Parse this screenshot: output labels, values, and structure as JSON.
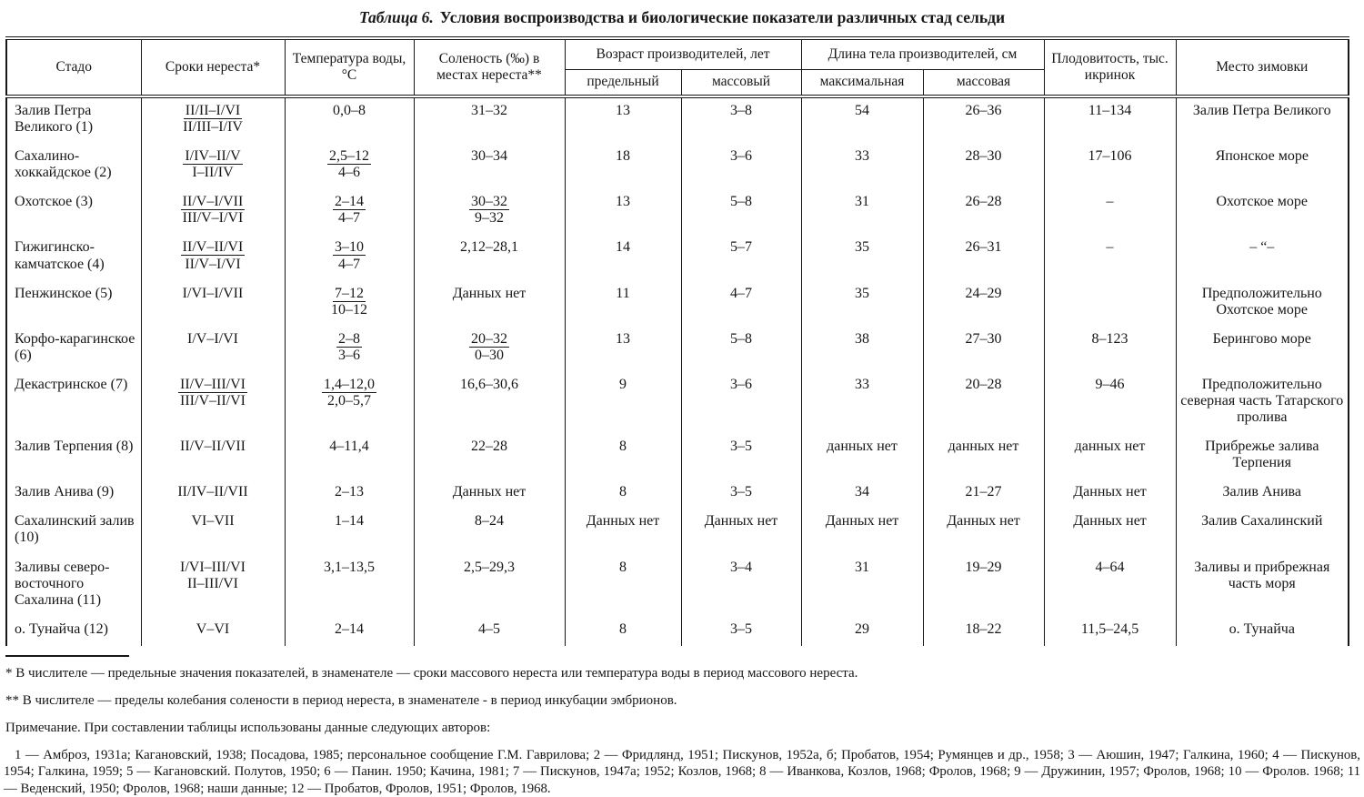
{
  "colors": {
    "ink": "#161616",
    "paper": "#ffffff"
  },
  "title": {
    "label": "Таблица 6.",
    "text": "Условия воспроизводства и биологические показатели различных стад сельди"
  },
  "table": {
    "header": {
      "groups": [
        {
          "label": "Стадо",
          "span": 1
        },
        {
          "label": "Сроки нереста*",
          "span": 1
        },
        {
          "label": "Температура воды, °С",
          "span": 1
        },
        {
          "label": "Соленость (‰) в местах нереста**",
          "span": 1
        },
        {
          "label": "Возраст производителей, лет",
          "span": 2,
          "subs": [
            "предельный",
            "массовый"
          ]
        },
        {
          "label": "Длина тела производителей, см",
          "span": 2,
          "subs": [
            "максимальная",
            "массовая"
          ]
        },
        {
          "label": "Плодовитость, тыс. икринок",
          "span": 1
        },
        {
          "label": "Место зимовки",
          "span": 1
        }
      ]
    },
    "rows": [
      {
        "cells": [
          "Залив Петра Великого (1)",
          {
            "t": "II/II–I/VI",
            "b": "II/III–I/IV",
            "u": true
          },
          "0,0–8",
          "31–32",
          "13",
          "3–8",
          "54",
          "26–36",
          "11–134",
          "Залив Петра Великого"
        ]
      },
      {
        "cells": [
          "Сахалино-хоккайдское (2)",
          {
            "t": "I/IV–II/V",
            "b": "I–II/IV",
            "u": true
          },
          {
            "t": "2,5–12",
            "b": "4–6",
            "u": true
          },
          "30–34",
          "18",
          "3–6",
          "33",
          "28–30",
          "17–106",
          "Японское море"
        ]
      },
      {
        "cells": [
          "Охотское (3)",
          {
            "t": "II/V–I/VII",
            "b": "III/V–I/VI",
            "u": true
          },
          {
            "t": "2–14",
            "b": "4–7",
            "u": true
          },
          {
            "t": "30–32",
            "b": "9–32",
            "u": true
          },
          "13",
          "5–8",
          "31",
          "26–28",
          "–",
          "Охотское море"
        ]
      },
      {
        "cells": [
          "Гижигинско-камчатское (4)",
          {
            "t": "II/V–II/VI",
            "b": "II/V–I/VI",
            "u": true
          },
          {
            "t": "3–10",
            "b": "4–7",
            "u": true
          },
          "2,12–28,1",
          "14",
          "5–7",
          "35",
          "26–31",
          "–",
          "– “–"
        ]
      },
      {
        "cells": [
          "Пенжинское (5)",
          "I/VI–I/VII",
          {
            "t": "7–12",
            "b": "10–12",
            "u": true
          },
          "Данных нет",
          "11",
          "4–7",
          "35",
          "24–29",
          "",
          "Предположительно Охотское море"
        ]
      },
      {
        "cells": [
          "Корфо-карагинское (6)",
          "I/V–I/VI",
          {
            "t": "2–8",
            "b": "3–6",
            "u": true
          },
          {
            "t": "20–32",
            "b": "0–30",
            "u": true
          },
          "13",
          "5–8",
          "38",
          "27–30",
          "8–123",
          "Берингово море"
        ]
      },
      {
        "cells": [
          "Декастринское (7)",
          {
            "t": "II/V–III/VI",
            "b": "III/V–II/VI",
            "u": true
          },
          {
            "t": "1,4–12,0",
            "b": "2,0–5,7",
            "u": true
          },
          "16,6–30,6",
          "9",
          "3–6",
          "33",
          "20–28",
          "9–46",
          "Предположительно северная часть Татарского пролива"
        ]
      },
      {
        "cells": [
          "Залив Терпения (8)",
          "II/V–II/VII",
          "4–11,4",
          "22–28",
          "8",
          "3–5",
          "данных нет",
          "данных нет",
          "данных нет",
          "Прибрежье залива Терпения"
        ]
      },
      {
        "cells": [
          "Залив Анива (9)",
          "II/IV–II/VII",
          "2–13",
          "Данных нет",
          "8",
          "3–5",
          "34",
          "21–27",
          "Данных нет",
          "Залив Анива"
        ]
      },
      {
        "cells": [
          "Сахалинский залив (10)",
          "VI–VII",
          "1–14",
          "8–24",
          "Данных нет",
          "Данных нет",
          "Данных нет",
          "Данных нет",
          "Данных нет",
          "Залив Сахалинский"
        ]
      },
      {
        "cells": [
          "Заливы северо-восточного Сахалина (11)",
          {
            "t": "I/VI–III/VI",
            "b": "II–III/VI",
            "u": false
          },
          "3,1–13,5",
          "2,5–29,3",
          "8",
          "3–4",
          "31",
          "19–29",
          "4–64",
          "Заливы и прибрежная часть моря"
        ]
      },
      {
        "cells": [
          "о. Тунайча (12)",
          "V–VI",
          "2–14",
          "4–5",
          "8",
          "3–5",
          "29",
          "18–22",
          "11,5–24,5",
          "о. Тунайча"
        ]
      }
    ]
  },
  "footnotes": [
    "* В числителе — предельные значения показателей, в знаменателе — сроки массового нереста или температура воды в период массового нереста.",
    "** В числителе — пределы колебания солености в период нереста, в знаменателе - в период инкубации эмбрионов."
  ],
  "note": "Примечание. При составлении таблицы использованы данные следующих авторов:",
  "references": "1 — Амброз, 1931а; Кагановский, 1938; Посадова, 1985; персональное сообщение Г.М. Гаврилова; 2 — Фридлянд, 1951; Пискунов, 1952а, б; Пробатов, 1954; Румянцев и др., 1958; 3 — Аюшин, 1947; Галкина, 1960; 4 — Пискунов, 1954; Галкина, 1959; 5 — Кагановский. Полутов, 1950; 6 — Панин. 1950; Качина, 1981; 7 — Пискунов, 1947а; 1952; Козлов, 1968; 8 — Иванкова, Козлов, 1968; Фролов, 1968; 9 — Дружинин, 1957; Фролов, 1968; 10 — Фролов. 1968; 11 — Веденский, 1950; Фролов, 1968; наши данные; 12 — Пробатов, Фролов, 1951; Фролов, 1968."
}
